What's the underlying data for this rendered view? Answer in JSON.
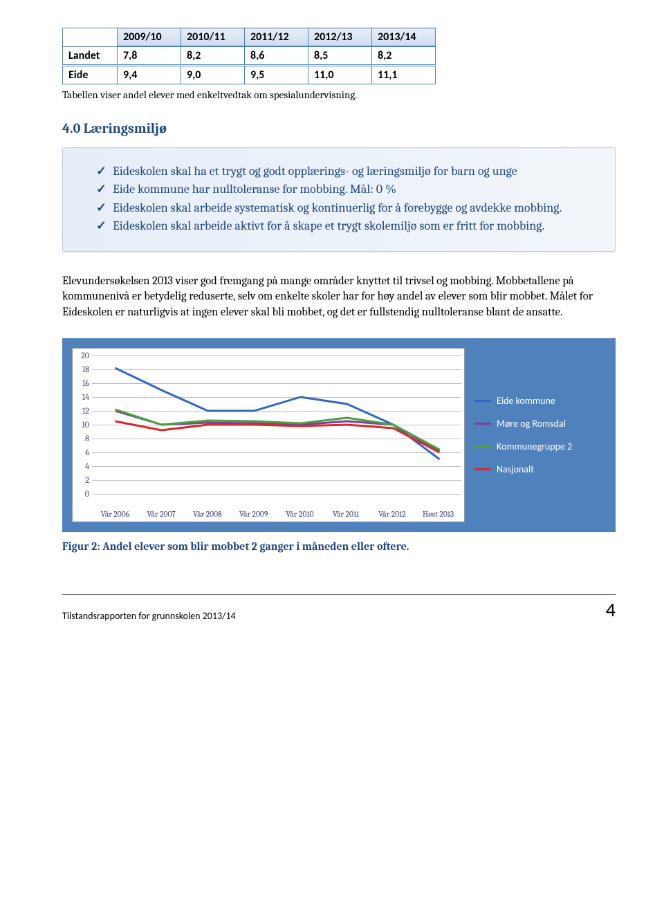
{
  "table": {
    "columns": [
      "",
      "2009/10",
      "2010/11",
      "2011/12",
      "2012/13",
      "2013/14"
    ],
    "rows": [
      [
        "Landet",
        "7,8",
        "8,2",
        "8,6",
        "8,5",
        "8,2"
      ],
      [
        "Eide",
        "9,4",
        "9,0",
        "9,5",
        "11,0",
        "11,1"
      ]
    ],
    "border_color": "#4f81bd",
    "header_bg": "#d9e2f0"
  },
  "table_caption": "Tabellen viser andel elever med enkeltvedtak om spesialundervisning.",
  "section_heading": "4.0 Læringsmiljø",
  "bullets": [
    "Eideskolen skal ha et trygt og godt opplærings- og læringsmiljø for barn og unge",
    "Eide kommune har nulltoleranse for mobbing. Mål: 0 %",
    "Eideskolen skal arbeide systematisk og kontinuerlig for å forebygge og avdekke mobbing.",
    "Eideskolen skal arbeide aktivt for å skape et trygt skolemiljø som er fritt for mobbing."
  ],
  "body_paragraph": "Elevundersøkelsen 2013 viser god fremgang på mange områder knyttet til trivsel og mobbing. Mobbetallene på kommunenivå er betydelig reduserte, selv om enkelte skoler har for høy andel av elever som blir mobbet. Målet for Eideskolen er naturligvis at ingen elever skal bli mobbet, og det er fullstendig nulltoleranse blant de ansatte.",
  "chart": {
    "type": "line",
    "ylim": [
      0,
      20
    ],
    "ytick_step": 2,
    "yaxis_ticks": [
      0,
      2,
      4,
      6,
      8,
      10,
      12,
      14,
      16,
      18,
      20
    ],
    "categories": [
      "Vår 2006",
      "Vår 2007",
      "Vår 2008",
      "Vår 2009",
      "Vår 2010",
      "Vår 2011",
      "Vår 2012",
      "Høst 2013"
    ],
    "series": [
      {
        "name": "Eide kommune",
        "color": "#3068c0",
        "values": [
          18.2,
          15.0,
          12.0,
          12.0,
          14.0,
          13.0,
          10.0,
          5.0
        ]
      },
      {
        "name": "Møre og Romsdal",
        "color": "#7d3fa0",
        "values": [
          12.0,
          10.0,
          10.3,
          10.2,
          10.0,
          10.5,
          10.0,
          6.2
        ]
      },
      {
        "name": "Kommunegruppe 2",
        "color": "#4aa03a",
        "values": [
          12.2,
          10.0,
          10.6,
          10.5,
          10.2,
          11.0,
          10.0,
          6.4
        ]
      },
      {
        "name": "Nasjonalt",
        "color": "#d82a2a",
        "values": [
          10.5,
          9.2,
          10.0,
          10.0,
          9.8,
          10.0,
          9.5,
          6.0
        ]
      }
    ],
    "plot_bg": "#ffffff",
    "panel_bg": "#4f81bd",
    "grid_color": "#bfbfbf",
    "line_width": 3,
    "legend_label_color": "#ffffff"
  },
  "figure_caption": "Figur 2: Andel elever som blir mobbet 2 ganger i måneden eller oftere.",
  "footer": {
    "text": "Tilstandsrapporten for grunnskolen 2013/14",
    "page": "4"
  }
}
